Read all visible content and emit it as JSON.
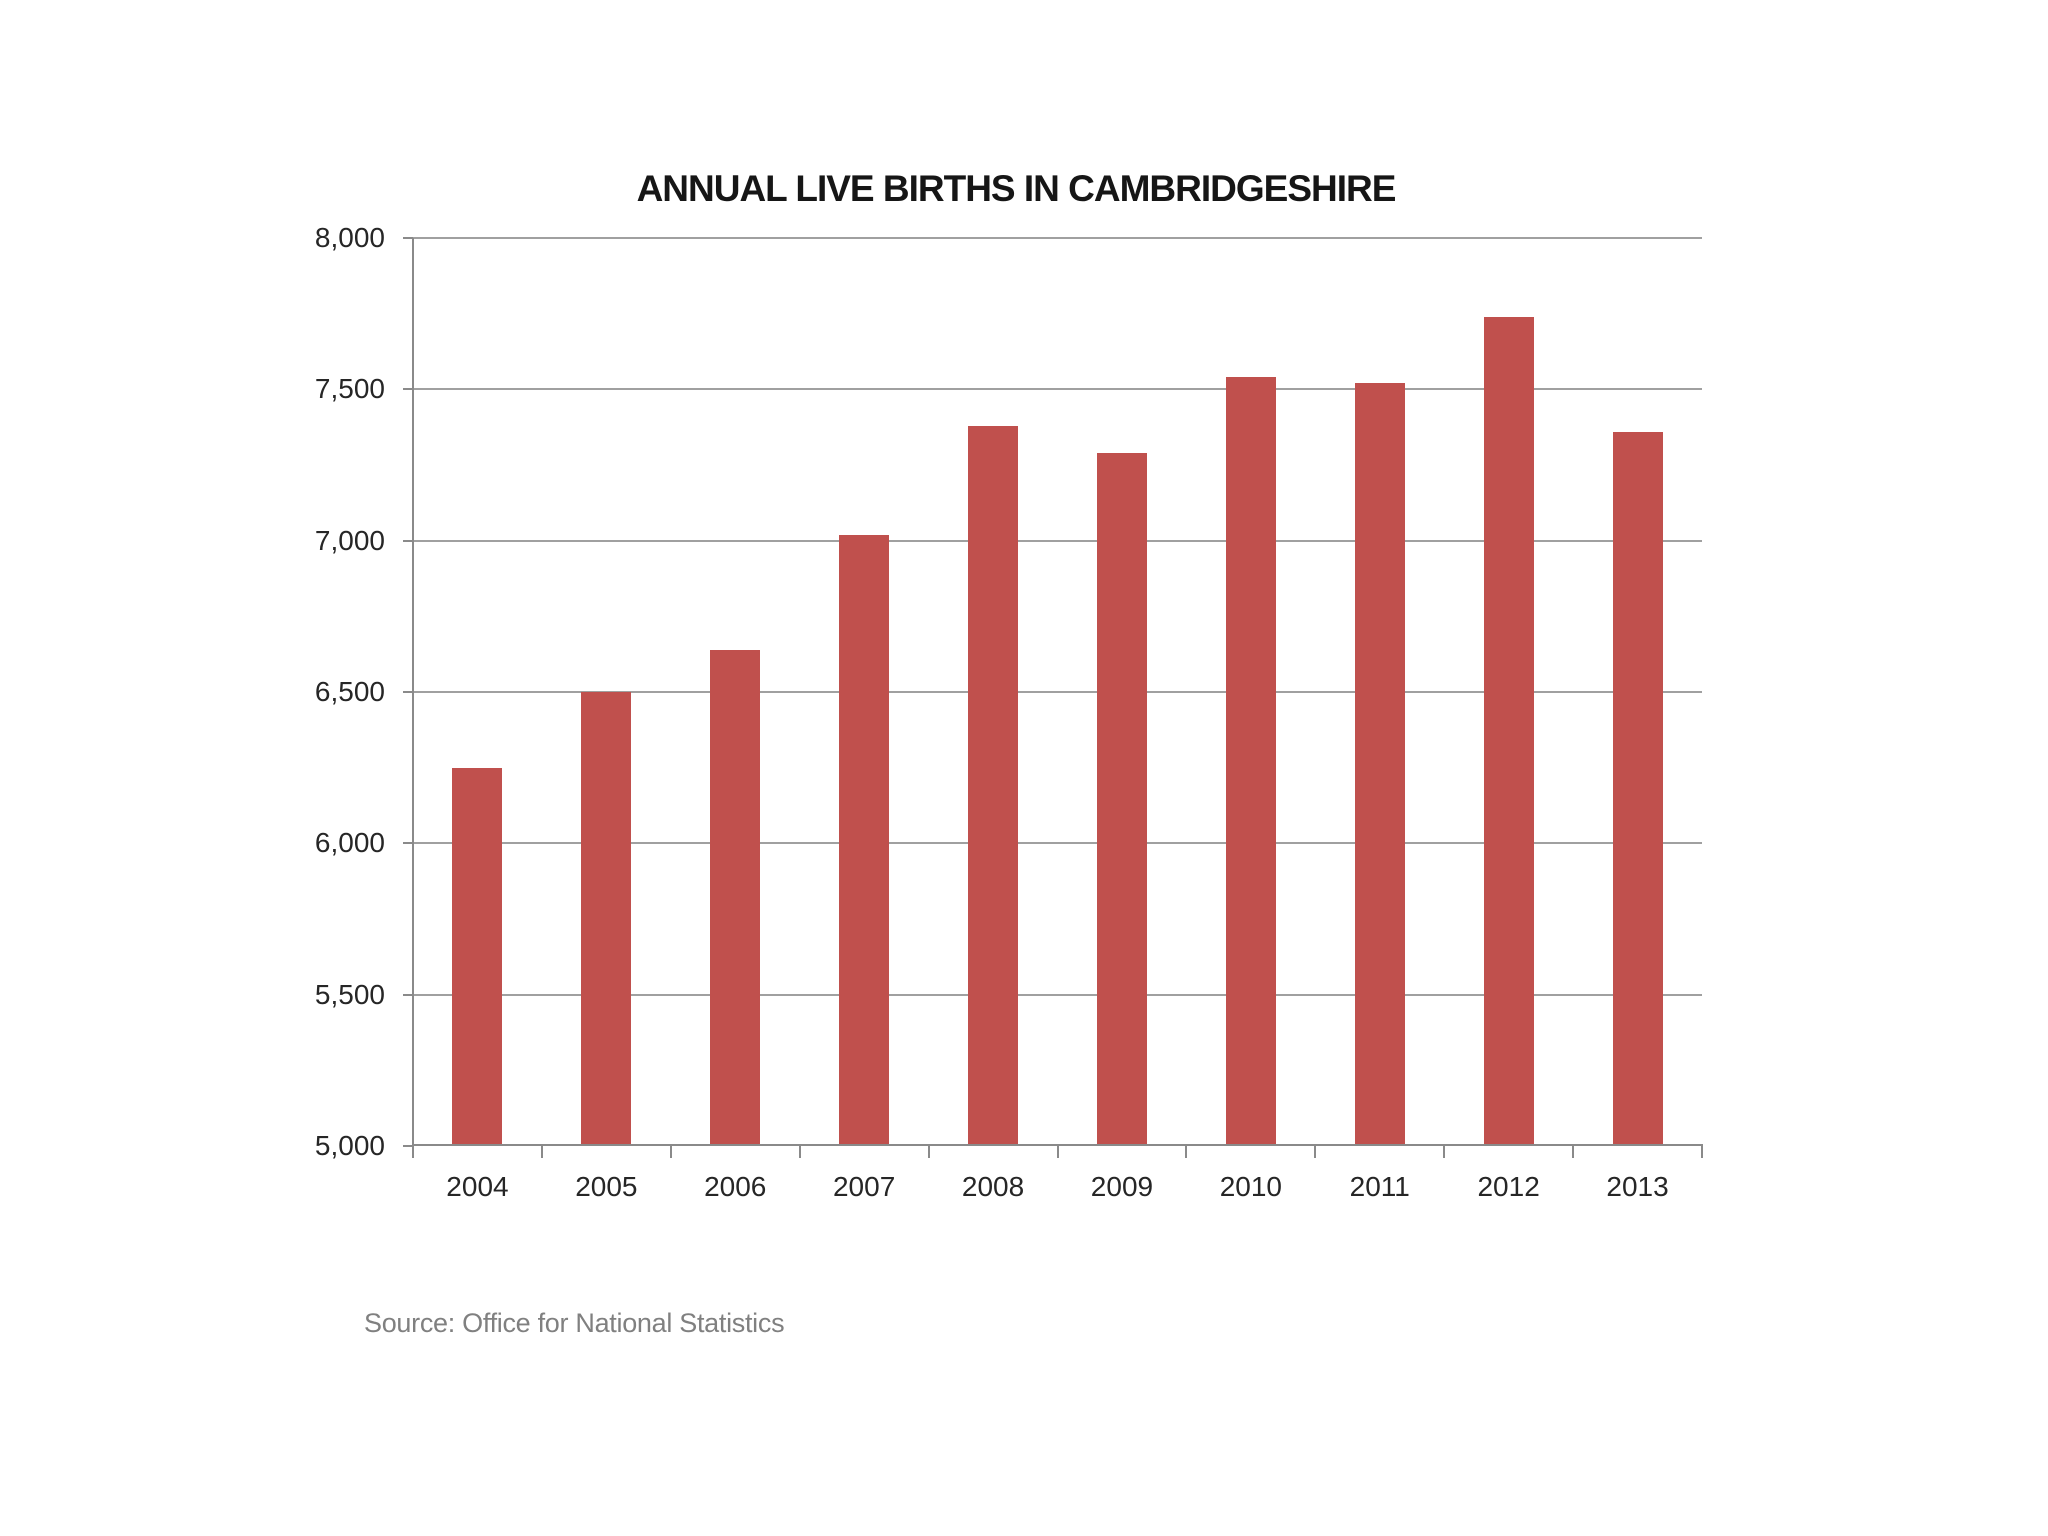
{
  "chart_data": {
    "type": "bar",
    "title": "ANNUAL LIVE BIRTHS IN CAMBRIDGESHIRE",
    "categories": [
      "2004",
      "2005",
      "2006",
      "2007",
      "2008",
      "2009",
      "2010",
      "2011",
      "2012",
      "2013"
    ],
    "values": [
      6250,
      6500,
      6640,
      7020,
      7380,
      7290,
      7540,
      7520,
      7740,
      7360
    ],
    "xlabel": "",
    "ylabel": "",
    "ylim": [
      5000,
      8000
    ],
    "ytick_step": 500,
    "ytick_labels": [
      "5,000",
      "5,500",
      "6,000",
      "6,500",
      "7,000",
      "7,500",
      "8,000"
    ],
    "grid": "horizontal-on",
    "legend": "none",
    "bar_color": "#c0504d",
    "axis_color": "#8a8a8a",
    "gridline_color": "#a0a0a0",
    "tick_label_color": "#262626",
    "title_color": "#161616"
  },
  "footer": {
    "source": "Source: Office for National Statistics"
  }
}
